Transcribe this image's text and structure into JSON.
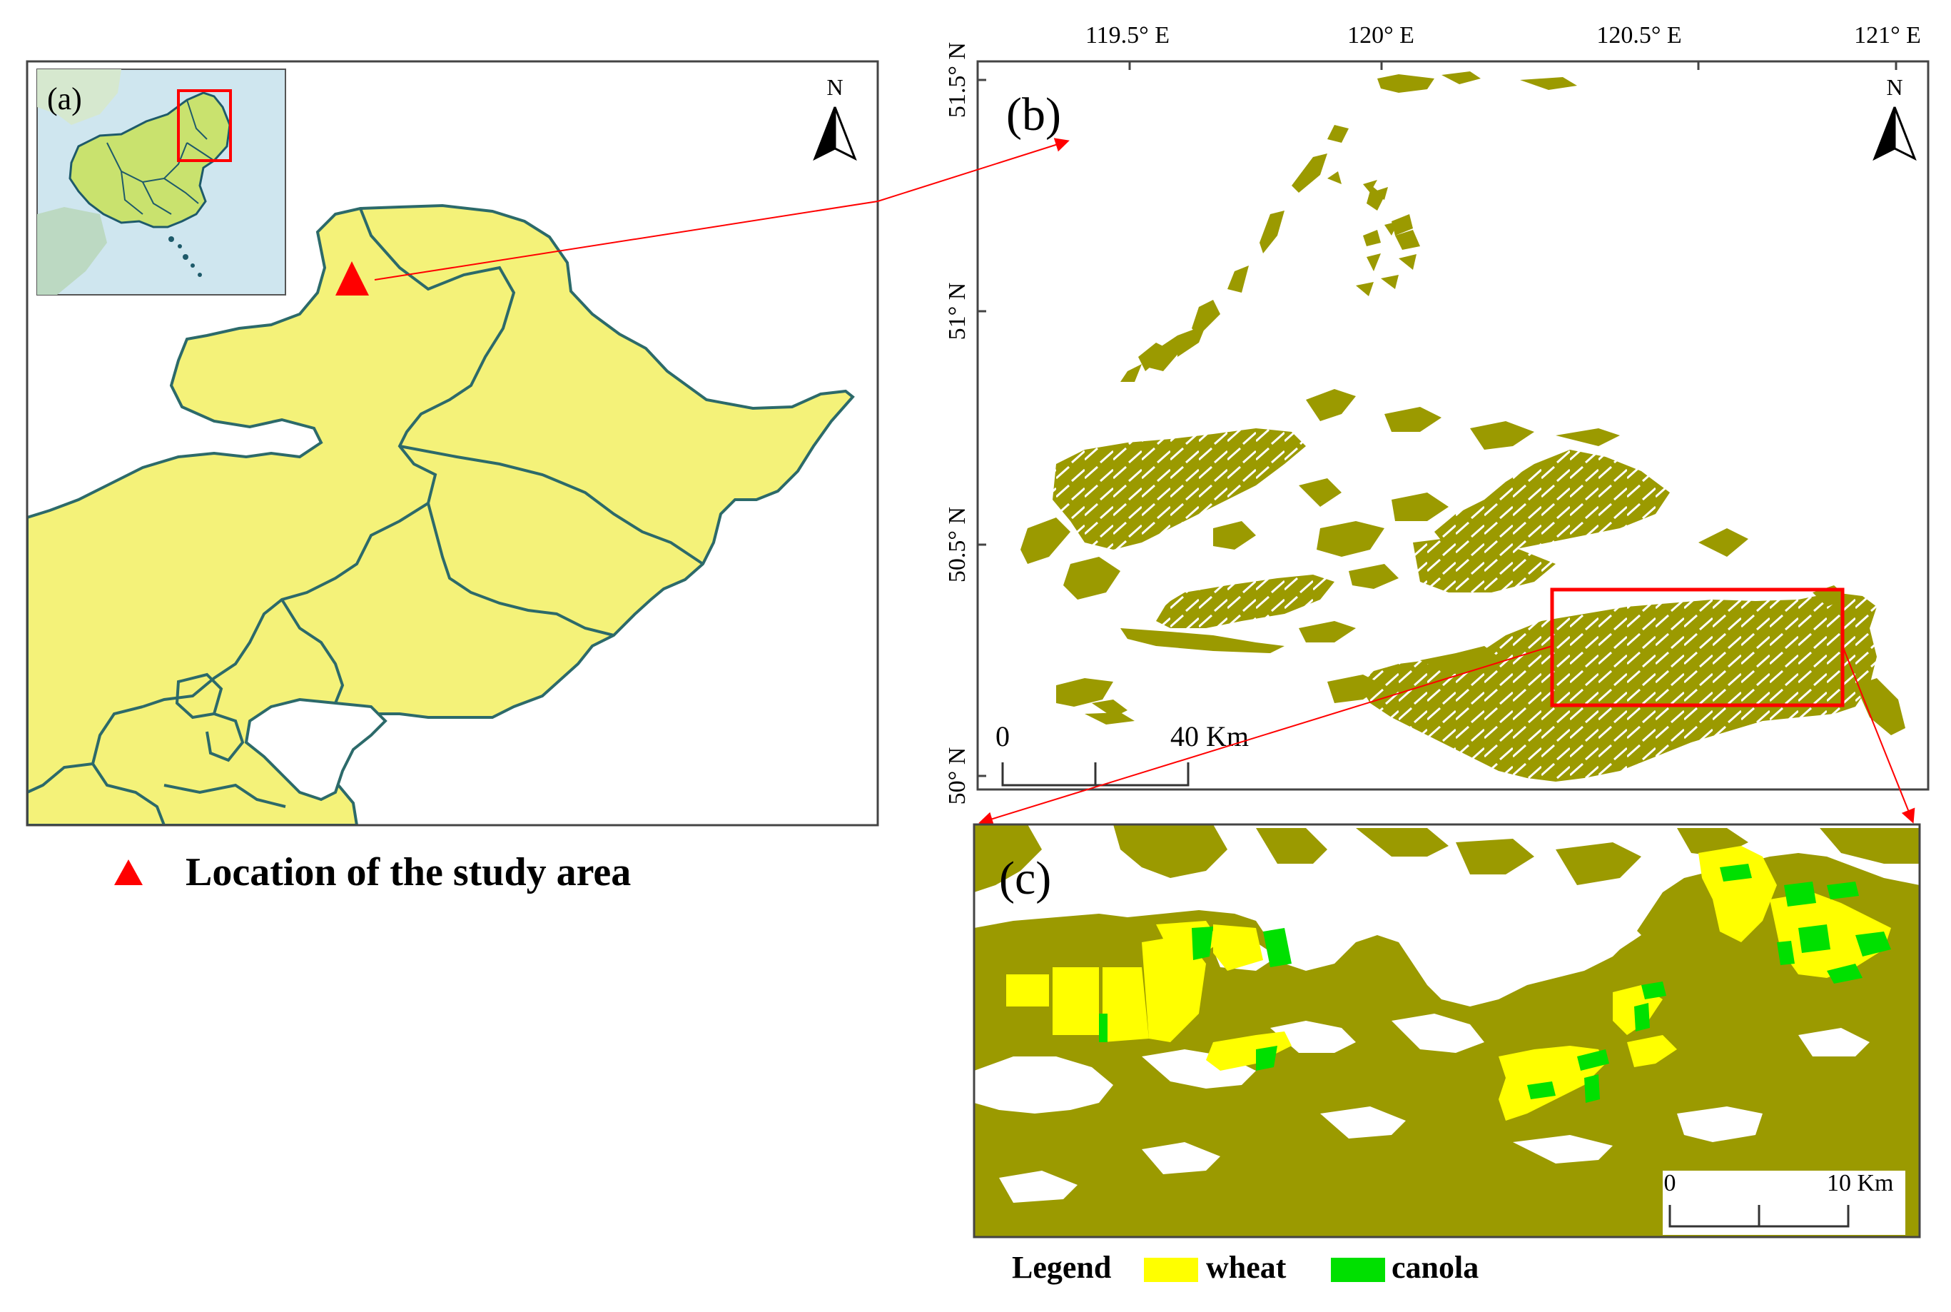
{
  "panel_a": {
    "label": "(a)",
    "north": "N",
    "legend_text": "Location of the study area"
  },
  "panel_b": {
    "label": "(b)",
    "north": "N",
    "x_ticks": [
      "119.5° E",
      "120° E",
      "120.5° E",
      "121° E"
    ],
    "y_ticks": [
      "51.5° N",
      "51° N",
      "50.5° N",
      "50° N"
    ],
    "scale_start": "0",
    "scale_end": "40 Km"
  },
  "panel_c": {
    "label": "(c)",
    "scale_start": "0",
    "scale_end": "10 Km"
  },
  "legend": {
    "title": "Legend",
    "items": [
      {
        "label": "wheat",
        "color": "#ffff00"
      },
      {
        "label": "canola",
        "color": "#00e000"
      }
    ]
  },
  "colors": {
    "land": "#f4f279",
    "boundary": "#2c6a6a",
    "sea": "#ffffff",
    "cropland": "#9b9a00",
    "marker": "#ff0000"
  }
}
